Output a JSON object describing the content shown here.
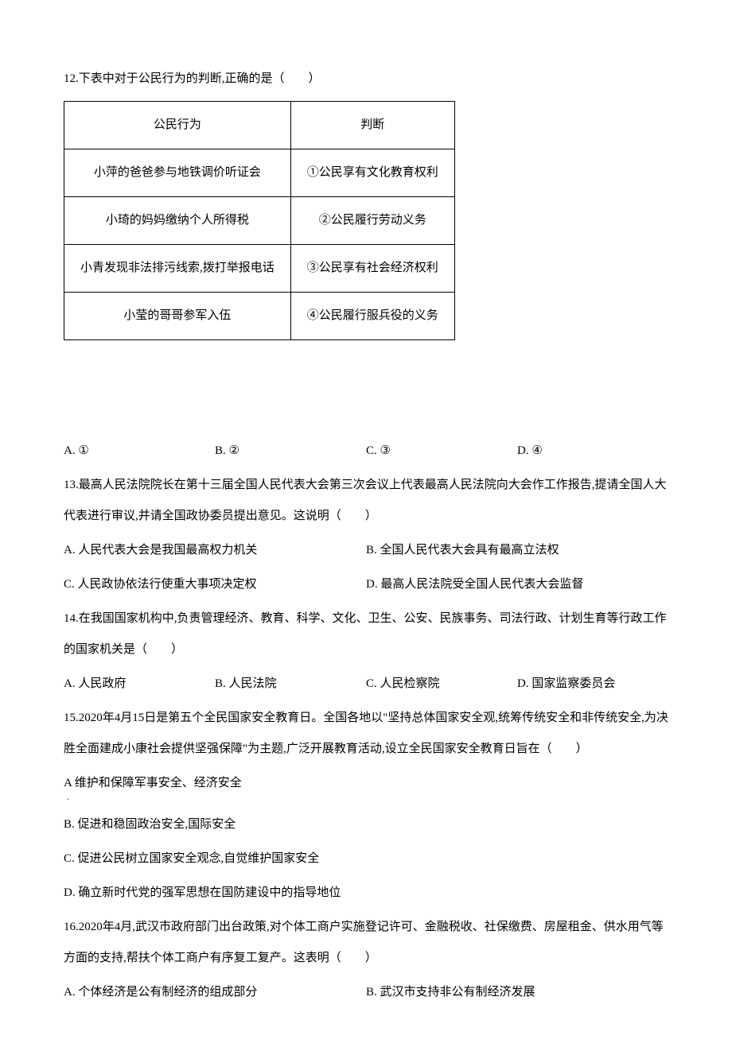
{
  "q12": {
    "prompt": "12.下表中对于公民行为的判断,正确的是（　　）",
    "table": {
      "headers": [
        "公民行为",
        "判断"
      ],
      "rows": [
        [
          "小萍的爸爸参与地铁调价听证会",
          "①公民享有文化教育权利"
        ],
        [
          "小琦的妈妈缴纳个人所得税",
          "②公民履行劳动义务"
        ],
        [
          "小青发现非法排污线索,拨打举报电话",
          "③公民享有社会经济权利"
        ],
        [
          "小莹的哥哥参军入伍",
          "④公民履行服兵役的义务"
        ]
      ]
    },
    "options": {
      "A": "A. ①",
      "B": "B. ②",
      "C": "C. ③",
      "D": "D. ④"
    }
  },
  "q13": {
    "prompt": "13.最高人民法院院长在第十三届全国人民代表大会第三次会议上代表最高人民法院向大会作工作报告,提请全国人大代表进行审议,并请全国政协委员提出意见。这说明（　　）",
    "options": {
      "A": "A. 人民代表大会是我国最高权力机关",
      "B": "B. 全国人民代表大会具有最高立法权",
      "C": "C. 人民政协依法行使重大事项决定权",
      "D": "D. 最高人民法院受全国人民代表大会监督"
    }
  },
  "q14": {
    "prompt": "14.在我国国家机构中,负责管理经济、教育、科学、文化、卫生、公安、民族事务、司法行政、计划生育等行政工作的国家机关是（　　）",
    "options": {
      "A": "A. 人民政府",
      "B": "B. 人民法院",
      "C": "C. 人民检察院",
      "D": "D. 国家监察委员会"
    }
  },
  "q15": {
    "prompt": "15.2020年4月15日是第五个全民国家安全教育日。全国各地以\"坚持总体国家安全观,统筹传统安全和非传统安全,为决胜全面建成小康社会提供坚强保障\"为主题,广泛开展教育活动,设立全民国家安全教育日旨在（　　）",
    "options": {
      "A": "A  维护和保障军事安全、经济安全",
      "B": "B. 促进和稳固政治安全,国际安全",
      "C": "C. 促进公民树立国家安全观念,自觉维护国家安全",
      "D": "D. 确立新时代党的强军思想在国防建设中的指导地位"
    },
    "dot": "."
  },
  "q16": {
    "prompt": "16.2020年4月,武汉市政府部门出台政策,对个体工商户实施登记许可、金融税收、社保缴费、房屋租金、供水用气等方面的支持,帮扶个体工商户有序复工复产。这表明（　　）",
    "options": {
      "A": "A. 个体经济是公有制经济的组成部分",
      "B": "B. 武汉市支持非公有制经济发展"
    }
  }
}
